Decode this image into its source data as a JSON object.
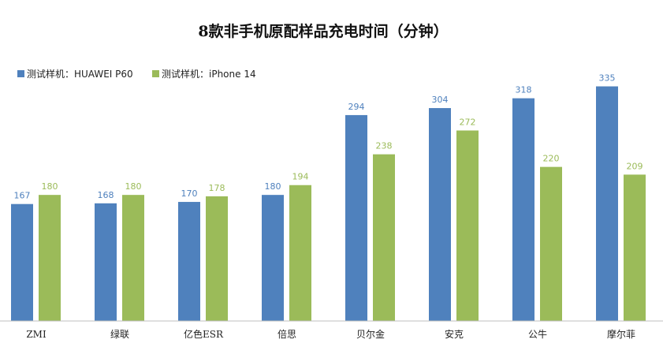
{
  "chart_data": {
    "type": "bar",
    "title": "8款非手机原配样品充电时间（分钟）",
    "categories": [
      "ZMI",
      "绿联",
      "亿色ESR",
      "倍思",
      "贝尔金",
      "安克",
      "公牛",
      "摩尔菲"
    ],
    "series": [
      {
        "name": "测试样机：HUAWEI P60",
        "color": "#4f81bd",
        "label_color": "#4f81bd",
        "values": [
          167,
          168,
          170,
          180,
          294,
          304,
          318,
          335
        ]
      },
      {
        "name": "测试样机：iPhone 14",
        "color": "#9bbb59",
        "label_color": "#9bbb59",
        "values": [
          180,
          180,
          178,
          194,
          238,
          272,
          220,
          209
        ]
      }
    ],
    "xlabel": "",
    "ylabel": "",
    "ylim": [
      0,
      340
    ],
    "grid": false,
    "legend_position": "top-left"
  }
}
